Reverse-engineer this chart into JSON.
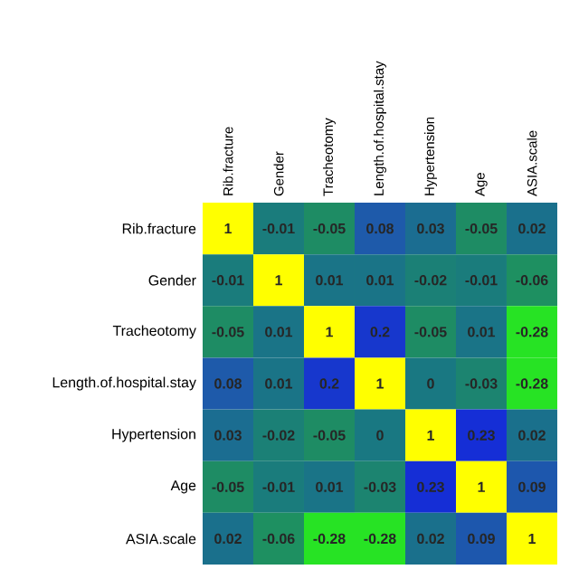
{
  "chart_data": {
    "type": "heatmap",
    "categories": [
      "Rib.fracture",
      "Gender",
      "Tracheotomy",
      "Length.of.hospital.stay",
      "Hypertension",
      "Age",
      "ASIA.scale"
    ],
    "y_categories": [
      "Rib.fracture",
      "Gender",
      "Tracheotomy",
      "Length.of.hospital.stay",
      "Hypertension",
      "Age",
      "ASIA.scale"
    ],
    "cells": [
      [
        1,
        -0.01,
        -0.05,
        0.08,
        0.03,
        -0.05,
        0.02
      ],
      [
        -0.01,
        1,
        0.01,
        0.01,
        -0.02,
        -0.01,
        -0.06
      ],
      [
        -0.05,
        0.01,
        1,
        0.2,
        -0.05,
        0.01,
        -0.28
      ],
      [
        0.08,
        0.01,
        0.2,
        1,
        0,
        -0.03,
        -0.28
      ],
      [
        0.03,
        -0.02,
        -0.05,
        0,
        1,
        0.23,
        0.02
      ],
      [
        -0.05,
        -0.01,
        0.01,
        -0.03,
        0.23,
        1,
        0.09
      ],
      [
        0.02,
        -0.06,
        -0.28,
        -0.28,
        0.02,
        0.09,
        1
      ]
    ],
    "data_labels": true
  }
}
